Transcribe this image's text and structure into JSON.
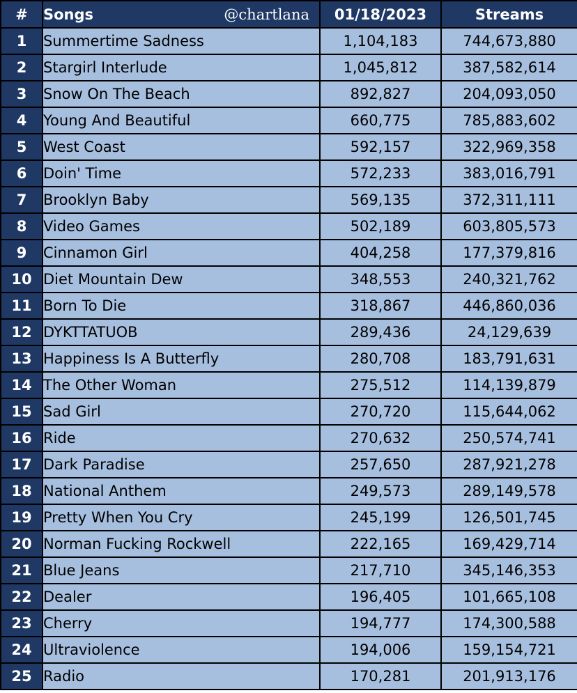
{
  "header": {
    "rank": "#",
    "song": "Songs",
    "handle": "@chartlana",
    "daily": "01/18/2023",
    "streams": "Streams"
  },
  "colors": {
    "header_bg": "#1f3864",
    "cell_bg": "#a7bfdf",
    "border": "#000000"
  },
  "chart_data": {
    "type": "table",
    "columns": [
      "#",
      "Songs",
      "01/18/2023",
      "Streams"
    ],
    "rows": [
      {
        "rank": "1",
        "song": "Summertime Sadness",
        "daily": "1,104,183",
        "streams": "744,673,880"
      },
      {
        "rank": "2",
        "song": "Stargirl Interlude",
        "daily": "1,045,812",
        "streams": "387,582,614"
      },
      {
        "rank": "3",
        "song": "Snow On The Beach",
        "daily": "892,827",
        "streams": "204,093,050"
      },
      {
        "rank": "4",
        "song": "Young And Beautiful",
        "daily": "660,775",
        "streams": "785,883,602"
      },
      {
        "rank": "5",
        "song": "West Coast",
        "daily": "592,157",
        "streams": "322,969,358"
      },
      {
        "rank": "6",
        "song": "Doin' Time",
        "daily": "572,233",
        "streams": "383,016,791"
      },
      {
        "rank": "7",
        "song": "Brooklyn Baby",
        "daily": "569,135",
        "streams": "372,311,111"
      },
      {
        "rank": "8",
        "song": "Video Games",
        "daily": "502,189",
        "streams": "603,805,573"
      },
      {
        "rank": "9",
        "song": "Cinnamon Girl",
        "daily": "404,258",
        "streams": "177,379,816"
      },
      {
        "rank": "10",
        "song": "Diet Mountain Dew",
        "daily": "348,553",
        "streams": "240,321,762"
      },
      {
        "rank": "11",
        "song": "Born To Die",
        "daily": "318,867",
        "streams": "446,860,036"
      },
      {
        "rank": "12",
        "song": "DYKTTATUOB",
        "daily": "289,436",
        "streams": "24,129,639"
      },
      {
        "rank": "13",
        "song": "Happiness Is A Butterfly",
        "daily": "280,708",
        "streams": "183,791,631"
      },
      {
        "rank": "14",
        "song": "The Other Woman",
        "daily": "275,512",
        "streams": "114,139,879"
      },
      {
        "rank": "15",
        "song": "Sad Girl",
        "daily": "270,720",
        "streams": "115,644,062"
      },
      {
        "rank": "16",
        "song": "Ride",
        "daily": "270,632",
        "streams": "250,574,741"
      },
      {
        "rank": "17",
        "song": "Dark Paradise",
        "daily": "257,650",
        "streams": "287,921,278"
      },
      {
        "rank": "18",
        "song": "National Anthem",
        "daily": "249,573",
        "streams": "289,149,578"
      },
      {
        "rank": "19",
        "song": "Pretty When You Cry",
        "daily": "245,199",
        "streams": "126,501,745"
      },
      {
        "rank": "20",
        "song": "Norman Fucking Rockwell",
        "daily": "222,165",
        "streams": "169,429,714"
      },
      {
        "rank": "21",
        "song": "Blue Jeans",
        "daily": "217,710",
        "streams": "345,146,353"
      },
      {
        "rank": "22",
        "song": "Dealer",
        "daily": "196,405",
        "streams": "101,665,108"
      },
      {
        "rank": "23",
        "song": "Cherry",
        "daily": "194,777",
        "streams": "174,300,588"
      },
      {
        "rank": "24",
        "song": "Ultraviolence",
        "daily": "194,006",
        "streams": "159,154,721"
      },
      {
        "rank": "25",
        "song": "Radio",
        "daily": "170,281",
        "streams": "201,913,176"
      }
    ]
  }
}
